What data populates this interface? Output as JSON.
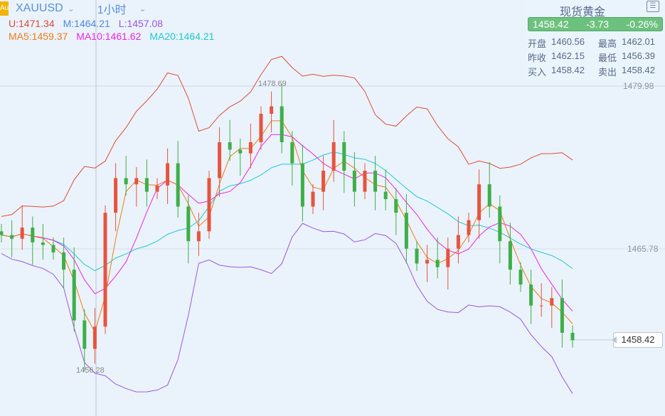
{
  "header": {
    "logo": "Au",
    "symbol": "XAUUSD",
    "timeframe": "1小时"
  },
  "boll": {
    "u": "U:1471.34",
    "m": "M:1464.21",
    "l": "L:1457.08"
  },
  "ma": {
    "ma5": "MA5:1459.37",
    "ma10": "MA10:1461.62",
    "ma20": "MA20:1464.21"
  },
  "colors": {
    "up": "#e8533f",
    "down": "#3fae49",
    "u": "#e04a3a",
    "m": "#4f87e8",
    "l": "#9b55e6",
    "ma5": "#f07a1a",
    "ma10": "#ee22ee",
    "ma20": "#22c6d8",
    "bg": "#eaf3fb"
  },
  "panel": {
    "title": "现货黄金",
    "icon": "expand-panel-icon",
    "price": "1458.42",
    "change": "-3.73",
    "pct": "-0.26%",
    "rows": [
      [
        "开盘",
        "1460.56",
        "最高",
        "1462.01"
      ],
      [
        "昨收",
        "1462.15",
        "最低",
        "1456.39"
      ],
      [
        "买入",
        "1458.42",
        "卖出",
        "1458.42"
      ]
    ]
  },
  "axis": {
    "top": "1479.98",
    "mid": "1465.78",
    "current": "1458.42"
  },
  "marks": {
    "high": "1478.69",
    "low": "1456.28"
  },
  "chart_data": {
    "type": "candlestick",
    "y_range": [
      1452.6,
      1481.5
    ],
    "closes": [
      1466.9,
      1466.6,
      1467.5,
      1466.3,
      1466.1,
      1465.5,
      1464.1,
      1460.0,
      1457.7,
      1459.5,
      1468.7,
      1471.5,
      1471.0,
      1471.5,
      1470.4,
      1470.9,
      1472.7,
      1469.2,
      1466.4,
      1467.2,
      1471.5,
      1474.4,
      1473.8,
      1473.5,
      1474.4,
      1476.7,
      1477.3,
      1474.4,
      1472.7,
      1469.2,
      1470.4,
      1472.1,
      1474.4,
      1472.1,
      1470.4,
      1472.1,
      1470.4,
      1469.8,
      1468.7,
      1465.8,
      1464.6,
      1464.9,
      1464.3,
      1465.8,
      1466.9,
      1468.1,
      1471.0,
      1469.2,
      1466.4,
      1464.1,
      1462.9,
      1461.2,
      1461.2,
      1461.8,
      1459.0,
      1458.4
    ]
  }
}
